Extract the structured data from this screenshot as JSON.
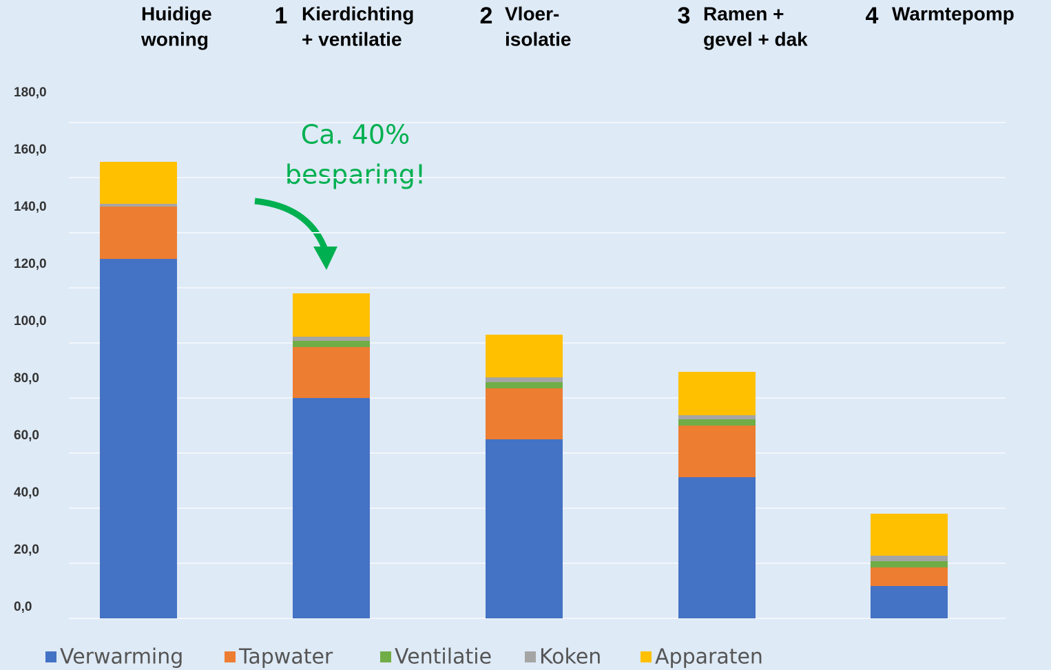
{
  "chart_data": {
    "type": "stacked_bar",
    "categories": [
      [
        "Huidige",
        "woning"
      ],
      [
        "Kierdichting",
        "+ ventilatie"
      ],
      [
        "Vloer-",
        "isolatie"
      ],
      [
        "Ramen +",
        "gevel + dak"
      ],
      [
        "Warmtepomp"
      ]
    ],
    "category_numbers": [
      null,
      "1",
      "2",
      "3",
      "4"
    ],
    "series": [
      {
        "name": "Verwarming",
        "color": "#4472c4",
        "values": [
          130.5,
          80,
          65,
          51.25,
          11.75
        ]
      },
      {
        "name": "Tapwater",
        "color": "#ed7d31",
        "values": [
          19,
          18.5,
          18.5,
          18.75,
          6.75
        ]
      },
      {
        "name": "Ventilatie",
        "color": "#70ad47",
        "values": [
          0,
          2.25,
          2.25,
          2.25,
          2.25
        ]
      },
      {
        "name": "Koken",
        "color": "#a5a5a5",
        "values": [
          1,
          1.5,
          1.75,
          1.5,
          2
        ]
      },
      {
        "name": "Apparaten",
        "color": "#ffc000",
        "values": [
          15.25,
          15.75,
          15.5,
          15.75,
          15.25
        ]
      }
    ],
    "ylim": [
      0,
      180
    ],
    "yticks": [
      {
        "value": 0,
        "label": "0,0"
      },
      {
        "value": 20,
        "label": "20,0"
      },
      {
        "value": 40,
        "label": "40,0"
      },
      {
        "value": 60,
        "label": "60,0"
      },
      {
        "value": 80,
        "label": "80,0"
      },
      {
        "value": 100,
        "label": "100,0"
      },
      {
        "value": 120,
        "label": "120,0"
      },
      {
        "value": 140,
        "label": "140,0"
      },
      {
        "value": 160,
        "label": "160,0"
      },
      {
        "value": 180,
        "label": "180,0"
      }
    ],
    "grid": true,
    "annotation": [
      "Ca. 40%",
      "besparing!"
    ]
  }
}
